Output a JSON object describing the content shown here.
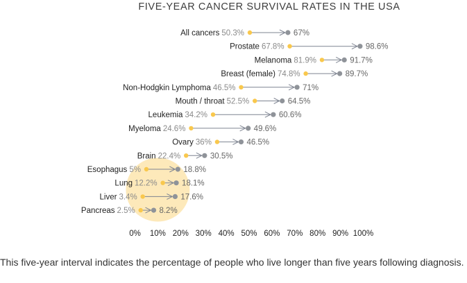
{
  "caption": "This five-year interval indicates the percentage of people who live longer than five years following diagnosis.",
  "colors": {
    "start": "#f9c84d",
    "end": "#8f9399",
    "arrow": "#7e8491",
    "highlight": "#fde9ba"
  },
  "chart_data": {
    "type": "dumbbell",
    "title": "FIVE-YEAR CANCER SURVIVAL RATES IN THE USA",
    "xlabel": "",
    "ylabel": "",
    "xlim": [
      0,
      100
    ],
    "x_ticks": [
      "0%",
      "10%",
      "20%",
      "30%",
      "40%",
      "50%",
      "60%",
      "70%",
      "80%",
      "90%",
      "100%"
    ],
    "grid": false,
    "categories": [
      "All cancers",
      "Prostate",
      "Melanoma",
      "Breast (female)",
      "Non-Hodgkin Lymphoma",
      "Mouth / throat",
      "Leukemia",
      "Myeloma",
      "Ovary",
      "Brain",
      "Esophagus",
      "Lung",
      "Liver",
      "Pancreas"
    ],
    "start_values": [
      50.3,
      67.8,
      81.9,
      74.8,
      46.5,
      52.5,
      34.2,
      24.6,
      36,
      22.4,
      5,
      12.2,
      3.4,
      2.5
    ],
    "end_values": [
      67,
      98.6,
      91.7,
      89.7,
      71,
      64.5,
      60.6,
      49.6,
      46.5,
      30.5,
      18.8,
      18.1,
      17.6,
      8.2
    ],
    "start_labels": [
      "50.3%",
      "67.8%",
      "81.9%",
      "74.8%",
      "46.5%",
      "52.5%",
      "34.2%",
      "24.6%",
      "36%",
      "22.4%",
      "5%",
      "12.2%",
      "3.4%",
      "2.5%"
    ],
    "end_labels": [
      "67%",
      "98.6%",
      "91.7%",
      "89.7%",
      "71%",
      "64.5%",
      "60.6%",
      "49.6%",
      "46.5%",
      "30.5%",
      "18.8%",
      "18.1%",
      "17.6%",
      "8.2%"
    ],
    "highlight": {
      "categories": [
        "Esophagus",
        "Lung",
        "Liver",
        "Pancreas"
      ],
      "center_x": 10
    }
  }
}
